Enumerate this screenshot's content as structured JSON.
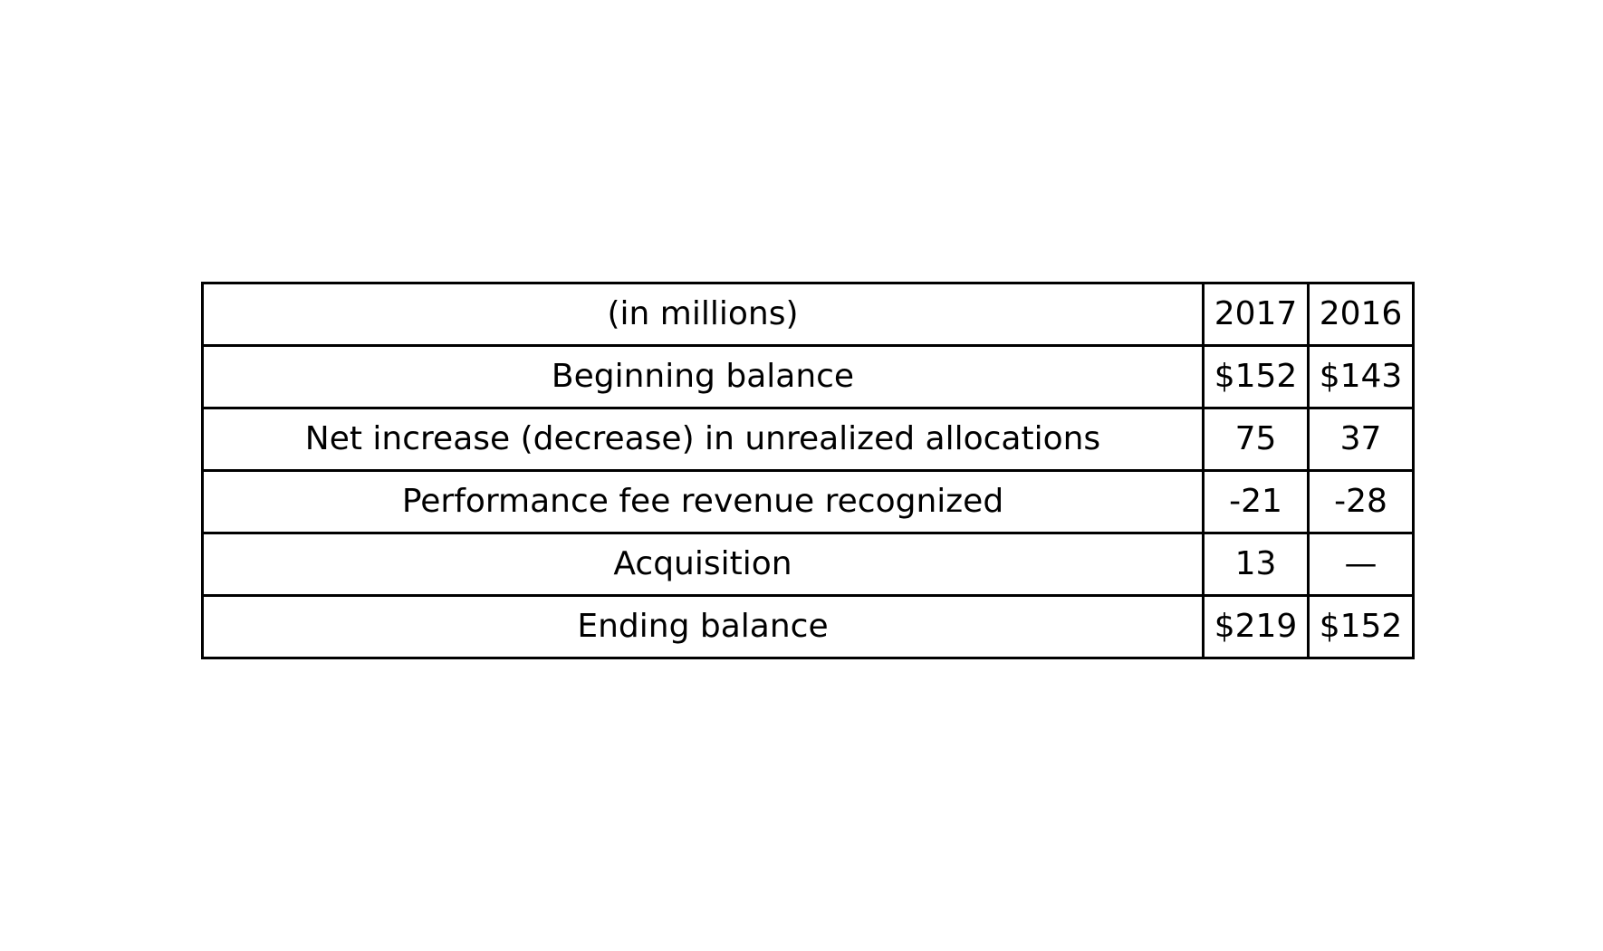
{
  "table": {
    "header": {
      "label": "(in millions)",
      "col_2017": "2017",
      "col_2016": "2016"
    },
    "rows": [
      {
        "label": "Beginning balance",
        "v2017": "$152",
        "v2016": "$143"
      },
      {
        "label": "Net increase (decrease) in unrealized allocations",
        "v2017": "75",
        "v2016": "37"
      },
      {
        "label": "Performance fee revenue recognized",
        "v2017": "-21",
        "v2016": "-28"
      },
      {
        "label": "Acquisition",
        "v2017": "13",
        "v2016": "—"
      },
      {
        "label": "Ending balance",
        "v2017": "$219",
        "v2016": "$152"
      }
    ]
  }
}
